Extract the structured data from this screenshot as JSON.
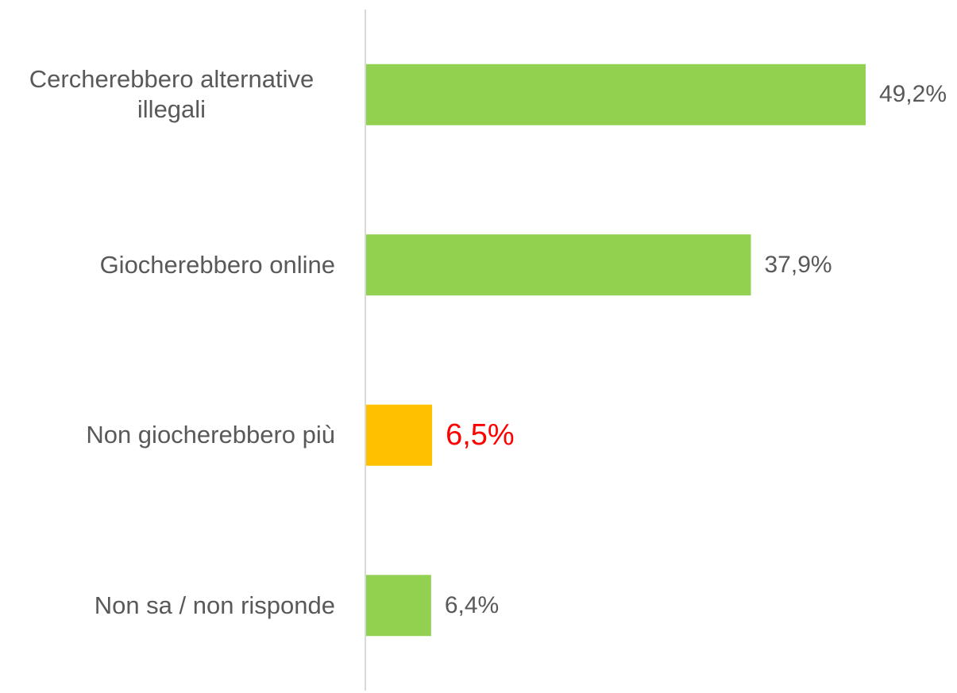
{
  "chart_data": {
    "type": "bar",
    "orientation": "horizontal",
    "categories": [
      "Cercherebbero alternative illegali",
      "Giocherebbero online",
      "Non giocherebbero più",
      "Non sa / non risponde"
    ],
    "values": [
      49.2,
      37.9,
      6.5,
      6.4
    ],
    "value_labels": [
      "49,2%",
      "37,9%",
      "6,5%",
      "6,4%"
    ],
    "colors": [
      "#92d050",
      "#92d050",
      "#ffc000",
      "#92d050"
    ],
    "value_label_colors": [
      "#595959",
      "#595959",
      "#ff0000",
      "#595959"
    ],
    "xlim": [
      0,
      58.2
    ]
  }
}
